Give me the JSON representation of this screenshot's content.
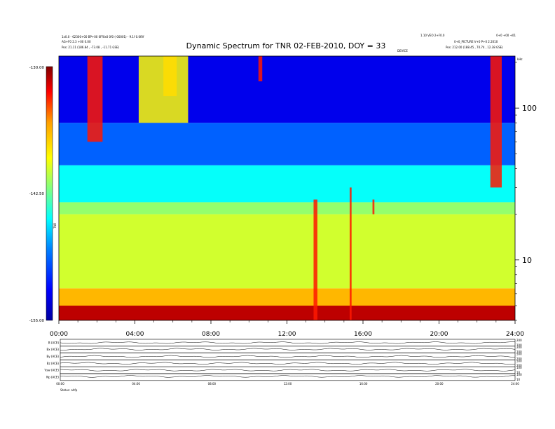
{
  "chart_data": {
    "type": "heatmap",
    "title": "Dynamic Spectrum for TNR 02-FEB-2010, DOY = 33",
    "header_left": [
      "1x0.0 - 62300+00 BP+00 0Ff0x0 0f0 (-00001) - 9.1f 0.0f0f",
      "AG+F0 2.3 +00 0.00",
      "Pos: 21.11 (186.84 , -73.08 , -11.71 GSE)"
    ],
    "header_right": [
      "1.10 VEO 2+F0.0",
      "0+0 +00 +01",
      "0+0_PICTURE V+0 P+0 2.2010",
      "Pos: 212.00 (188.45 , 70.74 , 12.38 GSE)"
    ],
    "header_center_small": "DEVICE",
    "right_axis_corner_label": "kHz",
    "x_axis": {
      "ticks": [
        "00:00",
        "04:00",
        "08:00",
        "12:00",
        "16:00",
        "20:00",
        "24:00"
      ],
      "range_hours": [
        0,
        24
      ]
    },
    "y_axis": {
      "scale": "log",
      "unit": "kHz",
      "range": [
        4,
        220
      ],
      "ticks": [
        10,
        100
      ],
      "tick_labels": [
        "10",
        "100"
      ]
    },
    "colorbar": {
      "label": "TNR",
      "ticks": [
        "-130.00",
        "-142.50",
        "-155.00"
      ],
      "range": [
        -155.0,
        -130.0
      ],
      "colors": [
        "#0000a0",
        "#0000ff",
        "#0080ff",
        "#00ffff",
        "#80ff80",
        "#ffff00",
        "#ffa000",
        "#ff0000",
        "#800000"
      ]
    },
    "bands": [
      {
        "freq_range_khz": [
          4.0,
          5.0
        ],
        "level_db": -131.5,
        "description_color": "red"
      },
      {
        "freq_range_khz": [
          5.0,
          6.5
        ],
        "level_db": -137.0,
        "description_color": "orange"
      },
      {
        "freq_range_khz": [
          6.5,
          20.0
        ],
        "level_db": -140.5,
        "description_color": "yellow"
      },
      {
        "freq_range_khz": [
          20.0,
          24.0
        ],
        "level_db": -142.0,
        "description_color": "light-yellow"
      },
      {
        "freq_range_khz": [
          24.0,
          42.0
        ],
        "level_db": -145.5,
        "description_color": "green"
      },
      {
        "freq_range_khz": [
          42.0,
          80.0
        ],
        "level_db": -149.5,
        "description_color": "cyan"
      },
      {
        "freq_range_khz": [
          80.0,
          220.0
        ],
        "level_db": -152.5,
        "description_color": "blue"
      }
    ],
    "emissions": [
      {
        "t_hours": [
          1.5,
          2.3
        ],
        "freq_range_khz": [
          60,
          220
        ],
        "description_color": "red"
      },
      {
        "t_hours": [
          5.5,
          6.2
        ],
        "freq_range_khz": [
          120,
          220
        ],
        "description_color": "red"
      },
      {
        "t_hours": [
          4.2,
          6.8
        ],
        "freq_range_khz": [
          80,
          220
        ],
        "description_color": "yellow"
      },
      {
        "t_hours": [
          10.5,
          10.7
        ],
        "freq_range_khz": [
          150,
          220
        ],
        "description_color": "red"
      },
      {
        "t_hours": [
          13.4,
          13.6
        ],
        "freq_range_khz": [
          4,
          25
        ],
        "description_color": "red"
      },
      {
        "t_hours": [
          15.3,
          15.4
        ],
        "freq_range_khz": [
          4,
          30
        ],
        "description_color": "red"
      },
      {
        "t_hours": [
          16.5,
          16.6
        ],
        "freq_range_khz": [
          20,
          25
        ],
        "description_color": "red"
      },
      {
        "t_hours": [
          22.7,
          23.3
        ],
        "freq_range_khz": [
          30,
          220
        ],
        "description_color": "red"
      }
    ],
    "sub_panels": [
      {
        "label": "B (ACE)",
        "level": 0.5,
        "right_ticks": [
          "200",
          "100"
        ]
      },
      {
        "label": "Bx (ACE)",
        "level": 0.55,
        "right_ticks": [
          "200",
          "100"
        ]
      },
      {
        "label": "By (ACE)",
        "level": 0.5,
        "right_ticks": [
          "500",
          "200"
        ]
      },
      {
        "label": "Bz (ACE)",
        "level": 0.5,
        "right_ticks": [
          "500",
          "200"
        ]
      },
      {
        "label": "Vsw (ACE)",
        "level": 0.5,
        "right_ticks": [
          "100",
          "10"
        ]
      },
      {
        "label": "Np (ACE)",
        "level": 0.6,
        "right_ticks": [
          "100",
          "10"
        ]
      }
    ],
    "sub_x_ticks": [
      "00:00",
      "04:00",
      "08:00",
      "12:00",
      "16:00",
      "20:00",
      "24:00"
    ],
    "footer_label": "Status: ahfp"
  }
}
